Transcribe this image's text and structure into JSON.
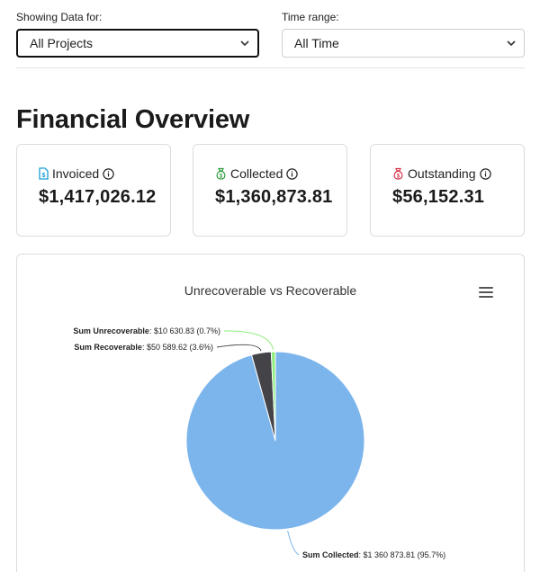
{
  "filters": {
    "showing": {
      "label": "Showing Data for:",
      "value": "All Projects"
    },
    "time": {
      "label": "Time range:",
      "value": "All Time"
    }
  },
  "page_title": "Financial Overview",
  "cards": [
    {
      "label": "Invoiced",
      "value": "$1,417,026.12",
      "icon": "invoice-icon",
      "color": "#1a9fd6"
    },
    {
      "label": "Collected",
      "value": "$1,360,873.81",
      "icon": "money-bag-icon",
      "color": "#2e9b3d"
    },
    {
      "label": "Outstanding",
      "value": "$56,152.31",
      "icon": "money-bag-icon",
      "color": "#d9314b"
    }
  ],
  "chart": {
    "menu_icon": "hamburger-menu-icon"
  },
  "chart_data": {
    "type": "pie",
    "title": "Unrecoverable vs Recoverable",
    "slices": [
      {
        "name": "Sum Collected",
        "value": 1360873.81,
        "value_label": "$1 360 873.81 (95.7%)",
        "percent": 95.7,
        "color": "#7cb5ec"
      },
      {
        "name": "Sum Recoverable",
        "value": 50589.62,
        "value_label": "$50 589.62 (3.6%)",
        "percent": 3.6,
        "color": "#434348"
      },
      {
        "name": "Sum Unrecoverable",
        "value": 10630.83,
        "value_label": "$10 630.83 (0.7%)",
        "percent": 0.7,
        "color": "#90ed7d"
      }
    ]
  }
}
